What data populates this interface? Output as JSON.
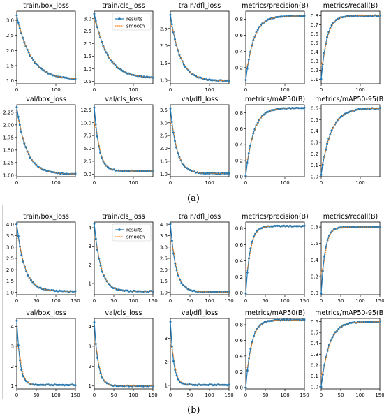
{
  "figure": {
    "label_a": "(a)",
    "label_b": "(b)",
    "legend_results": "results",
    "legend_smooth": "smooth",
    "colors": {
      "results": "#1f77b4",
      "smooth": "#ff7f0e"
    }
  },
  "chart_data": [
    {
      "panel": "a",
      "title": "train/box_loss",
      "type": "line",
      "xlim": [
        0,
        150
      ],
      "ylim": [
        0.9,
        3.3
      ],
      "xticks": [
        0,
        100
      ],
      "yticks": [
        1.0,
        1.5,
        2.0,
        2.5,
        3.0
      ],
      "ytick_labels": [
        "1.0",
        "1.5",
        "2.0",
        "2.5",
        "3.0"
      ],
      "legend": false,
      "series": [
        {
          "name": "results",
          "curve": "decay",
          "start": 3.15,
          "end": 1.03,
          "k": 0.028
        }
      ]
    },
    {
      "panel": "a",
      "title": "train/cls_loss",
      "type": "line",
      "xlim": [
        0,
        150
      ],
      "ylim": [
        0.4,
        3.3
      ],
      "xticks": [
        0,
        100
      ],
      "yticks": [
        0.5,
        1.0,
        1.5,
        2.0,
        2.5,
        3.0
      ],
      "ytick_labels": [
        "0.5",
        "1.0",
        "1.5",
        "2.0",
        "2.5",
        "3.0"
      ],
      "legend": true,
      "legend_position": "top-right",
      "series": [
        {
          "name": "results",
          "curve": "decay",
          "start": 3.2,
          "end": 0.62,
          "k": 0.03
        }
      ]
    },
    {
      "panel": "a",
      "title": "train/dfl_loss",
      "type": "line",
      "xlim": [
        0,
        150
      ],
      "ylim": [
        0.9,
        3.0
      ],
      "xticks": [
        0,
        100
      ],
      "yticks": [
        1.0,
        1.5,
        2.0,
        2.5
      ],
      "ytick_labels": [
        "1.0",
        "1.5",
        "2.0",
        "2.5"
      ],
      "legend": false,
      "series": [
        {
          "name": "results",
          "curve": "decay",
          "start": 2.9,
          "end": 0.98,
          "k": 0.04
        }
      ]
    },
    {
      "panel": "a",
      "title": "metrics/precision(B)",
      "type": "line",
      "xlim": [
        0,
        150
      ],
      "ylim": [
        0.0,
        0.9
      ],
      "xticks": [
        0,
        100
      ],
      "yticks": [
        0.2,
        0.4,
        0.6,
        0.8
      ],
      "ytick_labels": [
        "0.2",
        "0.4",
        "0.6",
        "0.8"
      ],
      "legend": false,
      "series": [
        {
          "name": "results",
          "curve": "rise",
          "start": 0.05,
          "end": 0.84,
          "k": 0.05
        }
      ]
    },
    {
      "panel": "a",
      "title": "metrics/recall(B)",
      "type": "line",
      "xlim": [
        0,
        150
      ],
      "ylim": [
        0.05,
        0.85
      ],
      "xticks": [
        0,
        100
      ],
      "yticks": [
        0.1,
        0.2,
        0.3,
        0.4,
        0.5,
        0.6,
        0.7,
        0.8
      ],
      "ytick_labels": [
        "0.1",
        "0.2",
        "0.3",
        "0.4",
        "0.5",
        "0.6",
        "0.7",
        "0.8"
      ],
      "legend": false,
      "series": [
        {
          "name": "results",
          "curve": "rise",
          "start": 0.1,
          "end": 0.8,
          "k": 0.07
        }
      ]
    },
    {
      "panel": "a",
      "title": "val/box_loss",
      "type": "line",
      "xlim": [
        0,
        150
      ],
      "ylim": [
        0.97,
        2.4
      ],
      "xticks": [
        0,
        100
      ],
      "yticks": [
        1.0,
        1.25,
        1.5,
        1.75,
        2.0,
        2.25
      ],
      "ytick_labels": [
        "1.00",
        "1.25",
        "1.50",
        "1.75",
        "2.00",
        "2.25"
      ],
      "legend": false,
      "series": [
        {
          "name": "results",
          "curve": "decay",
          "start": 2.35,
          "end": 1.02,
          "k": 0.04
        }
      ]
    },
    {
      "panel": "a",
      "title": "val/cls_loss",
      "type": "line",
      "xlim": [
        0,
        150
      ],
      "ylim": [
        -0.5,
        13.5
      ],
      "xticks": [
        0,
        100
      ],
      "yticks": [
        0.0,
        2.5,
        5.0,
        7.5,
        10.0,
        12.5
      ],
      "ytick_labels": [
        "0.0",
        "2.5",
        "5.0",
        "7.5",
        "10.0",
        "12.5"
      ],
      "legend": false,
      "series": [
        {
          "name": "results",
          "curve": "decay",
          "start": 13.0,
          "end": 0.6,
          "k": 0.08
        }
      ]
    },
    {
      "panel": "a",
      "title": "val/dfl_loss",
      "type": "line",
      "xlim": [
        0,
        150
      ],
      "ylim": [
        0.9,
        3.7
      ],
      "xticks": [
        0,
        100
      ],
      "yticks": [
        1.0,
        1.5,
        2.0,
        2.5,
        3.0,
        3.5
      ],
      "ytick_labels": [
        "1.0",
        "1.5",
        "2.0",
        "2.5",
        "3.0",
        "3.5"
      ],
      "legend": false,
      "series": [
        {
          "name": "results",
          "curve": "decay",
          "start": 3.55,
          "end": 1.02,
          "k": 0.06
        }
      ]
    },
    {
      "panel": "a",
      "title": "metrics/mAP50(B)",
      "type": "line",
      "xlim": [
        0,
        150
      ],
      "ylim": [
        0.0,
        0.9
      ],
      "xticks": [
        0,
        100
      ],
      "yticks": [
        0.0,
        0.2,
        0.4,
        0.6,
        0.8
      ],
      "ytick_labels": [
        "0.0",
        "0.2",
        "0.4",
        "0.6",
        "0.8"
      ],
      "legend": false,
      "series": [
        {
          "name": "results",
          "curve": "rise",
          "start": 0.02,
          "end": 0.86,
          "k": 0.05
        }
      ]
    },
    {
      "panel": "a",
      "title": "metrics/mAP50-95(B)",
      "type": "line",
      "xlim": [
        0,
        150
      ],
      "ylim": [
        0.0,
        0.63
      ],
      "xticks": [
        0,
        100
      ],
      "yticks": [
        0.0,
        0.1,
        0.2,
        0.3,
        0.4,
        0.5,
        0.6
      ],
      "ytick_labels": [
        "0.0",
        "0.1",
        "0.2",
        "0.3",
        "0.4",
        "0.5",
        "0.6"
      ],
      "legend": false,
      "series": [
        {
          "name": "results",
          "curve": "rise",
          "start": 0.02,
          "end": 0.6,
          "k": 0.04
        }
      ]
    },
    {
      "panel": "b",
      "title": "train/box_loss",
      "type": "line",
      "xlim": [
        0,
        150
      ],
      "ylim": [
        0.9,
        4.1
      ],
      "xticks": [
        0,
        50,
        100,
        150
      ],
      "yticks": [
        1.0,
        1.5,
        2.0,
        2.5,
        3.0,
        3.5,
        4.0
      ],
      "ytick_labels": [
        "1.0",
        "1.5",
        "2.0",
        "2.5",
        "3.0",
        "3.5",
        "4.0"
      ],
      "legend": false,
      "series": [
        {
          "name": "results",
          "curve": "decay",
          "start": 4.0,
          "end": 1.05,
          "k": 0.05
        }
      ]
    },
    {
      "panel": "b",
      "title": "train/cls_loss",
      "type": "line",
      "xlim": [
        0,
        150
      ],
      "ylim": [
        0.4,
        4.3
      ],
      "xticks": [
        0,
        50,
        100,
        150
      ],
      "yticks": [
        1,
        2,
        3,
        4
      ],
      "ytick_labels": [
        "1",
        "2",
        "3",
        "4"
      ],
      "legend": true,
      "legend_position": "top-right",
      "series": [
        {
          "name": "results",
          "curve": "decay",
          "start": 4.2,
          "end": 0.58,
          "k": 0.06
        }
      ]
    },
    {
      "panel": "b",
      "title": "train/dfl_loss",
      "type": "line",
      "xlim": [
        0,
        150
      ],
      "ylim": [
        0.9,
        4.1
      ],
      "xticks": [
        0,
        50,
        100,
        150
      ],
      "yticks": [
        1.0,
        1.5,
        2.0,
        2.5,
        3.0,
        3.5,
        4.0
      ],
      "ytick_labels": [
        "1.0",
        "1.5",
        "2.0",
        "2.5",
        "3.0",
        "3.5",
        "4.0"
      ],
      "legend": false,
      "series": [
        {
          "name": "results",
          "curve": "decay",
          "start": 4.0,
          "end": 1.02,
          "k": 0.07
        }
      ]
    },
    {
      "panel": "b",
      "title": "metrics/precision(B)",
      "type": "line",
      "xlim": [
        0,
        150
      ],
      "ylim": [
        -0.02,
        0.88
      ],
      "xticks": [
        0,
        50,
        100,
        150
      ],
      "yticks": [
        0.0,
        0.2,
        0.4,
        0.6,
        0.8
      ],
      "ytick_labels": [
        "0.0",
        "0.2",
        "0.4",
        "0.6",
        "0.8"
      ],
      "legend": false,
      "series": [
        {
          "name": "results",
          "curve": "rise",
          "start": 0.0,
          "end": 0.83,
          "k": 0.09
        }
      ]
    },
    {
      "panel": "b",
      "title": "metrics/recall(B)",
      "type": "line",
      "xlim": [
        0,
        150
      ],
      "ylim": [
        -0.02,
        0.86
      ],
      "xticks": [
        0,
        50,
        100,
        150
      ],
      "yticks": [
        0.0,
        0.2,
        0.4,
        0.6,
        0.8
      ],
      "ytick_labels": [
        "0.0",
        "0.2",
        "0.4",
        "0.6",
        "0.8"
      ],
      "legend": false,
      "series": [
        {
          "name": "results",
          "curve": "rise",
          "start": 0.0,
          "end": 0.8,
          "k": 0.1
        }
      ]
    },
    {
      "panel": "b",
      "title": "val/box_loss",
      "type": "line",
      "xlim": [
        0,
        150
      ],
      "ylim": [
        0.85,
        4.4
      ],
      "xticks": [
        0,
        50,
        100,
        150
      ],
      "yticks": [
        1,
        2,
        3,
        4
      ],
      "ytick_labels": [
        "1",
        "2",
        "3",
        "4"
      ],
      "legend": false,
      "series": [
        {
          "name": "results",
          "curve": "decay",
          "start": 4.3,
          "end": 1.05,
          "k": 0.12
        }
      ]
    },
    {
      "panel": "b",
      "title": "val/cls_loss",
      "type": "line",
      "xlim": [
        0,
        150
      ],
      "ylim": [
        0.85,
        4.4
      ],
      "xticks": [
        0,
        50,
        100,
        150
      ],
      "yticks": [
        1,
        2,
        3,
        4
      ],
      "ytick_labels": [
        "1",
        "2",
        "3",
        "4"
      ],
      "legend": false,
      "series": [
        {
          "name": "results",
          "curve": "decay",
          "start": 4.2,
          "end": 1.0,
          "k": 0.1
        }
      ]
    },
    {
      "panel": "b",
      "title": "val/dfl_loss",
      "type": "line",
      "xlim": [
        0,
        150
      ],
      "ylim": [
        0.85,
        3.85
      ],
      "xticks": [
        0,
        50,
        100,
        150
      ],
      "yticks": [
        1,
        2,
        3
      ],
      "ytick_labels": [
        "1",
        "2",
        "3"
      ],
      "legend": false,
      "series": [
        {
          "name": "results",
          "curve": "decay",
          "start": 3.7,
          "end": 1.02,
          "k": 0.12
        }
      ]
    },
    {
      "panel": "b",
      "title": "metrics/mAP50(B)",
      "type": "line",
      "xlim": [
        0,
        150
      ],
      "ylim": [
        -0.02,
        0.88
      ],
      "xticks": [
        0,
        50,
        100,
        150
      ],
      "yticks": [
        0.0,
        0.2,
        0.4,
        0.6,
        0.8
      ],
      "ytick_labels": [
        "0.0",
        "0.2",
        "0.4",
        "0.6",
        "0.8"
      ],
      "legend": false,
      "series": [
        {
          "name": "results",
          "curve": "rise",
          "start": 0.0,
          "end": 0.86,
          "k": 0.07
        }
      ]
    },
    {
      "panel": "b",
      "title": "metrics/mAP50-95(B)",
      "type": "line",
      "xlim": [
        0,
        150
      ],
      "ylim": [
        -0.02,
        0.63
      ],
      "xticks": [
        0,
        50,
        100,
        150
      ],
      "yticks": [
        0.0,
        0.1,
        0.2,
        0.3,
        0.4,
        0.5,
        0.6
      ],
      "ytick_labels": [
        "0.0",
        "0.1",
        "0.2",
        "0.3",
        "0.4",
        "0.5",
        "0.6"
      ],
      "legend": false,
      "series": [
        {
          "name": "results",
          "curve": "rise",
          "start": 0.0,
          "end": 0.6,
          "k": 0.05
        }
      ]
    }
  ]
}
